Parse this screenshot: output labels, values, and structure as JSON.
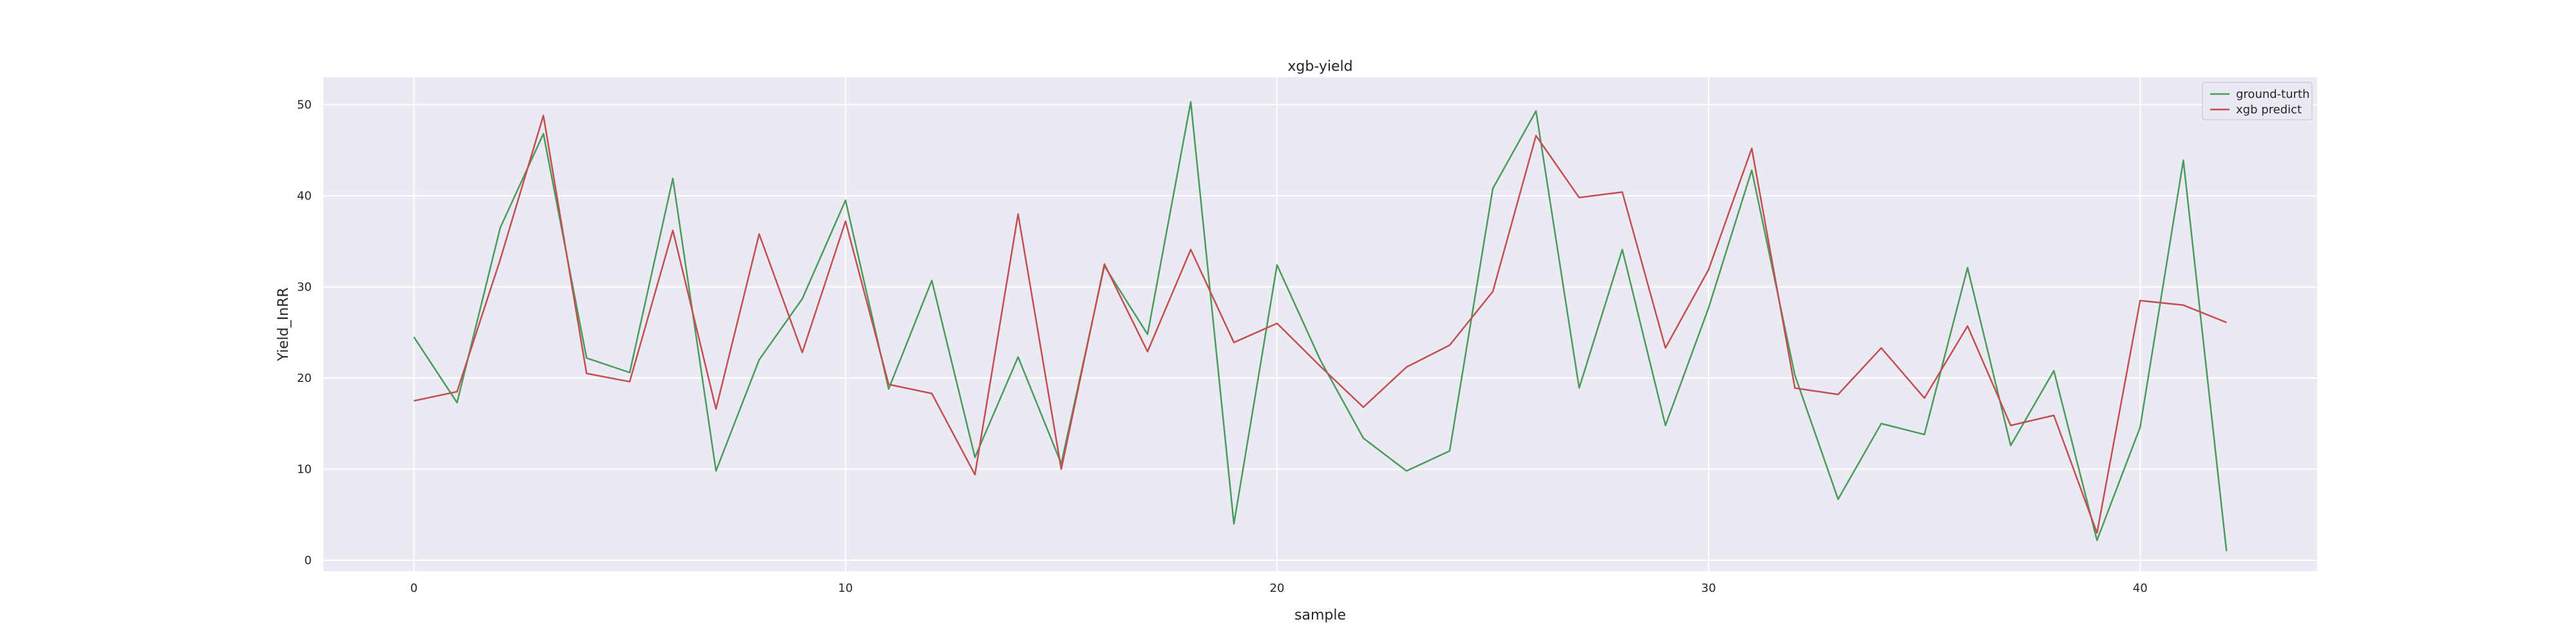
{
  "chart_data": {
    "type": "line",
    "title": "xgb-yield",
    "xlabel": "sample",
    "ylabel": "Yield_InRR",
    "xlim": [
      -2.1,
      44.1
    ],
    "ylim": [
      -1.2,
      53
    ],
    "xticks": [
      0,
      10,
      20,
      30,
      40
    ],
    "yticks": [
      0,
      10,
      20,
      30,
      40,
      50
    ],
    "grid": true,
    "legend_position": "top-right",
    "series": [
      {
        "name": "ground-turth",
        "color": "#4c9a5c",
        "x": [
          0,
          1,
          2,
          3,
          4,
          5,
          6,
          7,
          8,
          9,
          10,
          11,
          12,
          13,
          14,
          15,
          16,
          17,
          18,
          19,
          20,
          21,
          22,
          23,
          24,
          25,
          26,
          27,
          28,
          29,
          30,
          31,
          32,
          33,
          34,
          35,
          36,
          37,
          38,
          39,
          40,
          41,
          42
        ],
        "values": [
          24.5,
          17.3,
          36.5,
          46.8,
          22.2,
          20.6,
          41.9,
          9.8,
          22.0,
          28.7,
          39.5,
          18.8,
          30.7,
          11.3,
          22.3,
          10.6,
          32.3,
          24.8,
          50.3,
          4.0,
          32.4,
          22.0,
          13.4,
          9.8,
          12.0,
          40.8,
          49.3,
          18.9,
          34.1,
          14.8,
          27.7,
          42.8,
          20.3,
          6.7,
          15.0,
          13.8,
          32.1,
          12.6,
          20.8,
          2.2,
          14.6,
          43.9,
          1.0
        ]
      },
      {
        "name": "xgb predict",
        "color": "#c44e52",
        "x": [
          0,
          1,
          2,
          3,
          4,
          5,
          6,
          7,
          8,
          9,
          10,
          11,
          12,
          13,
          14,
          15,
          16,
          17,
          18,
          19,
          20,
          21,
          22,
          23,
          24,
          25,
          26,
          27,
          28,
          29,
          30,
          31,
          32,
          33,
          34,
          35,
          36,
          37,
          38,
          39,
          40,
          41,
          42
        ],
        "values": [
          17.5,
          18.5,
          33.0,
          48.8,
          20.5,
          19.6,
          36.2,
          16.6,
          35.8,
          22.8,
          37.2,
          19.3,
          18.3,
          9.4,
          38.0,
          10.0,
          32.5,
          22.9,
          34.1,
          23.9,
          26.0,
          21.3,
          16.8,
          21.2,
          23.6,
          29.5,
          46.6,
          39.8,
          40.4,
          23.3,
          31.9,
          45.2,
          18.9,
          18.2,
          23.3,
          17.8,
          25.7,
          14.8,
          15.9,
          3.0,
          28.5,
          28.0,
          26.1
        ]
      }
    ]
  }
}
